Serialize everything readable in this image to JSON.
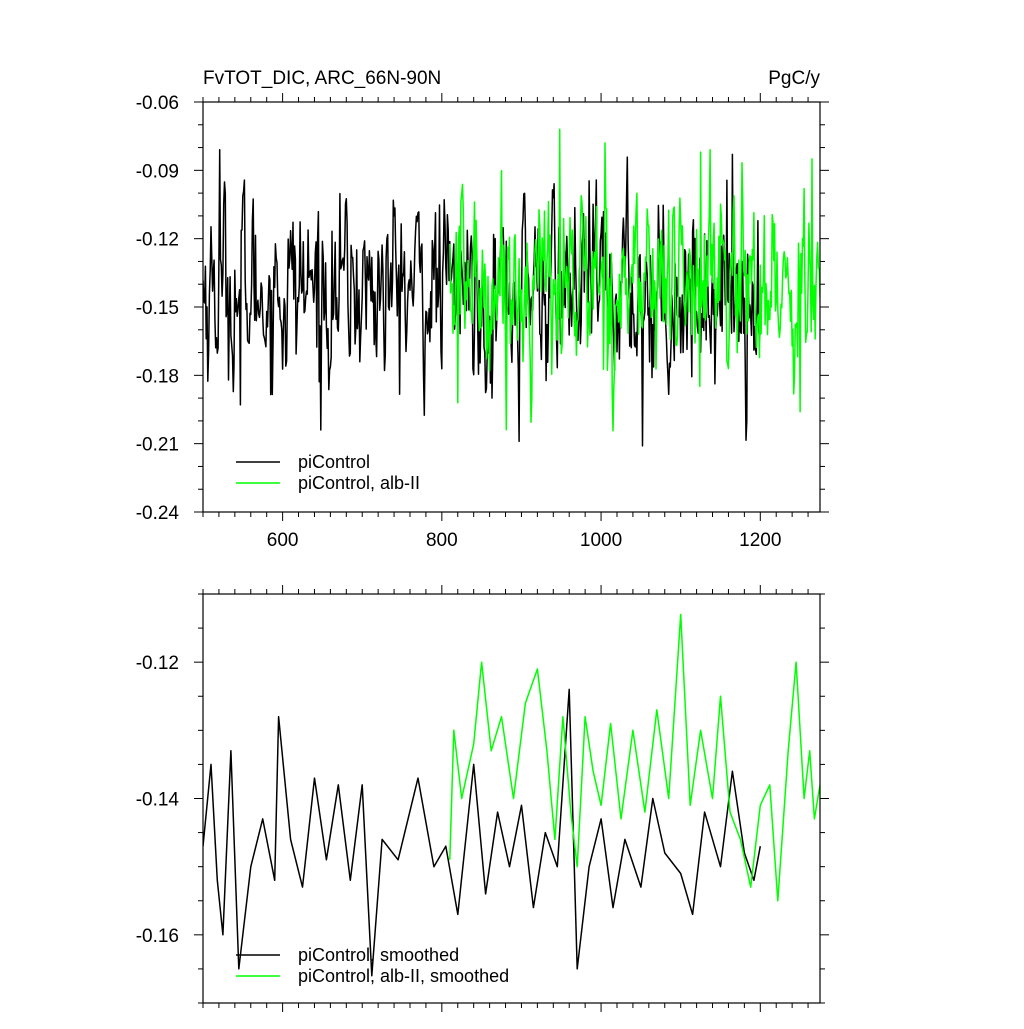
{
  "chart_data": [
    {
      "type": "line",
      "title": "FvTOT_DIC, ARC_66N-90N",
      "units": "PgC/y",
      "xlim": [
        500,
        1275
      ],
      "ylim": [
        -0.24,
        -0.06
      ],
      "x_ticks": [
        600,
        800,
        1000,
        1200
      ],
      "x_tick_labels": [
        "600",
        "800",
        "1000",
        "1200"
      ],
      "y_ticks": [
        -0.06,
        -0.09,
        -0.12,
        -0.15,
        -0.18,
        -0.21,
        -0.24
      ],
      "y_tick_labels": [
        "-0.06",
        "-0.09",
        "-0.12",
        "-0.15",
        "-0.18",
        "-0.21",
        "-0.24"
      ],
      "legend_position": "bottom-left",
      "series": [
        {
          "name": "piControl",
          "color": "#000000",
          "x_range": [
            500,
            1200
          ],
          "mean": -0.142,
          "y_extremes": [
            [
              521,
              -0.081
            ],
            [
              547,
              -0.193
            ],
            [
              648,
              -0.204
            ],
            [
              897,
              -0.209
            ],
            [
              1052,
              -0.211
            ],
            [
              1165,
              -0.083
            ]
          ]
        },
        {
          "name": "piControl, alb-II",
          "color": "#00ff00",
          "x_range": [
            810,
            1275
          ],
          "mean": -0.139,
          "y_extremes": [
            [
              820,
              -0.192
            ],
            [
              948,
              -0.072
            ],
            [
              1005,
              -0.078
            ],
            [
              1125,
              -0.082
            ],
            [
              1250,
              -0.196
            ],
            [
              1265,
              -0.085
            ]
          ]
        }
      ]
    },
    {
      "type": "line",
      "xlim": [
        500,
        1275
      ],
      "ylim": [
        -0.17,
        -0.11
      ],
      "x_ticks": [
        600,
        800,
        1000,
        1200
      ],
      "y_ticks": [
        -0.12,
        -0.14,
        -0.16
      ],
      "y_tick_labels": [
        "-0.12",
        "-0.14",
        "-0.16"
      ],
      "legend_position": "bottom-left",
      "series": [
        {
          "name": "piControl, smoothed",
          "color": "#000000",
          "x_range": [
            500,
            1200
          ],
          "points": [
            [
              500,
              -0.147
            ],
            [
              510,
              -0.135
            ],
            [
              518,
              -0.152
            ],
            [
              525,
              -0.16
            ],
            [
              535,
              -0.133
            ],
            [
              545,
              -0.165
            ],
            [
              560,
              -0.15
            ],
            [
              575,
              -0.143
            ],
            [
              590,
              -0.152
            ],
            [
              595,
              -0.128
            ],
            [
              610,
              -0.146
            ],
            [
              625,
              -0.153
            ],
            [
              640,
              -0.137
            ],
            [
              655,
              -0.149
            ],
            [
              670,
              -0.138
            ],
            [
              685,
              -0.152
            ],
            [
              700,
              -0.138
            ],
            [
              712,
              -0.166
            ],
            [
              725,
              -0.146
            ],
            [
              745,
              -0.149
            ],
            [
              770,
              -0.137
            ],
            [
              790,
              -0.15
            ],
            [
              805,
              -0.147
            ],
            [
              820,
              -0.157
            ],
            [
              840,
              -0.135
            ],
            [
              855,
              -0.154
            ],
            [
              870,
              -0.142
            ],
            [
              885,
              -0.15
            ],
            [
              900,
              -0.141
            ],
            [
              915,
              -0.156
            ],
            [
              930,
              -0.145
            ],
            [
              945,
              -0.15
            ],
            [
              960,
              -0.124
            ],
            [
              970,
              -0.165
            ],
            [
              985,
              -0.15
            ],
            [
              1000,
              -0.143
            ],
            [
              1015,
              -0.156
            ],
            [
              1030,
              -0.146
            ],
            [
              1050,
              -0.153
            ],
            [
              1065,
              -0.14
            ],
            [
              1080,
              -0.148
            ],
            [
              1100,
              -0.151
            ],
            [
              1115,
              -0.157
            ],
            [
              1130,
              -0.142
            ],
            [
              1150,
              -0.15
            ],
            [
              1165,
              -0.136
            ],
            [
              1180,
              -0.148
            ],
            [
              1192,
              -0.152
            ],
            [
              1200,
              -0.147
            ]
          ]
        },
        {
          "name": "piControl, alb-II, smoothed",
          "color": "#00ff00",
          "x_range": [
            810,
            1275
          ],
          "points": [
            [
              810,
              -0.149
            ],
            [
              815,
              -0.13
            ],
            [
              825,
              -0.14
            ],
            [
              840,
              -0.132
            ],
            [
              850,
              -0.12
            ],
            [
              862,
              -0.133
            ],
            [
              875,
              -0.128
            ],
            [
              890,
              -0.14
            ],
            [
              905,
              -0.126
            ],
            [
              920,
              -0.121
            ],
            [
              932,
              -0.133
            ],
            [
              942,
              -0.146
            ],
            [
              952,
              -0.128
            ],
            [
              962,
              -0.142
            ],
            [
              970,
              -0.15
            ],
            [
              980,
              -0.128
            ],
            [
              990,
              -0.136
            ],
            [
              1000,
              -0.141
            ],
            [
              1012,
              -0.129
            ],
            [
              1025,
              -0.143
            ],
            [
              1040,
              -0.13
            ],
            [
              1055,
              -0.142
            ],
            [
              1070,
              -0.127
            ],
            [
              1085,
              -0.14
            ],
            [
              1100,
              -0.113
            ],
            [
              1112,
              -0.141
            ],
            [
              1125,
              -0.13
            ],
            [
              1140,
              -0.14
            ],
            [
              1150,
              -0.125
            ],
            [
              1162,
              -0.142
            ],
            [
              1175,
              -0.146
            ],
            [
              1188,
              -0.153
            ],
            [
              1200,
              -0.141
            ],
            [
              1212,
              -0.138
            ],
            [
              1222,
              -0.155
            ],
            [
              1235,
              -0.133
            ],
            [
              1245,
              -0.12
            ],
            [
              1255,
              -0.14
            ],
            [
              1262,
              -0.133
            ],
            [
              1268,
              -0.143
            ],
            [
              1275,
              -0.138
            ]
          ]
        }
      ]
    }
  ]
}
